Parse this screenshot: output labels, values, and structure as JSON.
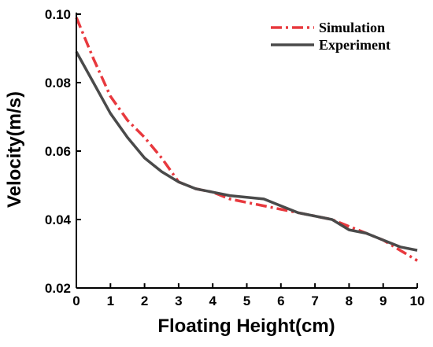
{
  "chart_data": {
    "type": "line",
    "title": "",
    "xlabel": "Floating Height(cm)",
    "ylabel": "Velocity(m/s)",
    "xlim": [
      0,
      10
    ],
    "ylim": [
      0.02,
      0.1
    ],
    "xticks": [
      0,
      1,
      2,
      3,
      4,
      5,
      6,
      7,
      8,
      9,
      10
    ],
    "yticks": [
      0.02,
      0.04,
      0.06,
      0.08,
      0.1
    ],
    "xtick_labels": [
      "0",
      "1",
      "2",
      "3",
      "4",
      "5",
      "6",
      "7",
      "8",
      "9",
      "10"
    ],
    "ytick_labels": [
      "0.02",
      "0.04",
      "0.06",
      "0.08",
      "0.10"
    ],
    "grid": false,
    "legend_position": "top-right",
    "series": [
      {
        "name": "Simulation",
        "color": "#e8393e",
        "line_style": "dash-dot",
        "x": [
          0,
          0.5,
          1,
          1.5,
          2,
          2.5,
          3,
          3.5,
          4,
          4.5,
          5,
          5.5,
          6,
          6.5,
          7,
          7.5,
          8,
          8.5,
          9,
          9.5,
          10
        ],
        "y": [
          0.099,
          0.087,
          0.076,
          0.069,
          0.064,
          0.058,
          0.051,
          0.049,
          0.048,
          0.046,
          0.045,
          0.044,
          0.043,
          0.042,
          0.041,
          0.04,
          0.038,
          0.036,
          0.034,
          0.031,
          0.028
        ]
      },
      {
        "name": "Experiment",
        "color": "#4a4a4a",
        "line_style": "solid",
        "x": [
          0,
          0.5,
          1,
          1.5,
          2,
          2.5,
          3,
          3.5,
          4,
          4.5,
          5,
          5.5,
          6,
          6.5,
          7,
          7.5,
          8,
          8.5,
          9,
          9.5,
          10
        ],
        "y": [
          0.089,
          0.08,
          0.071,
          0.064,
          0.058,
          0.054,
          0.051,
          0.049,
          0.048,
          0.047,
          0.0465,
          0.046,
          0.044,
          0.042,
          0.041,
          0.04,
          0.037,
          0.036,
          0.034,
          0.032,
          0.031
        ]
      }
    ]
  }
}
